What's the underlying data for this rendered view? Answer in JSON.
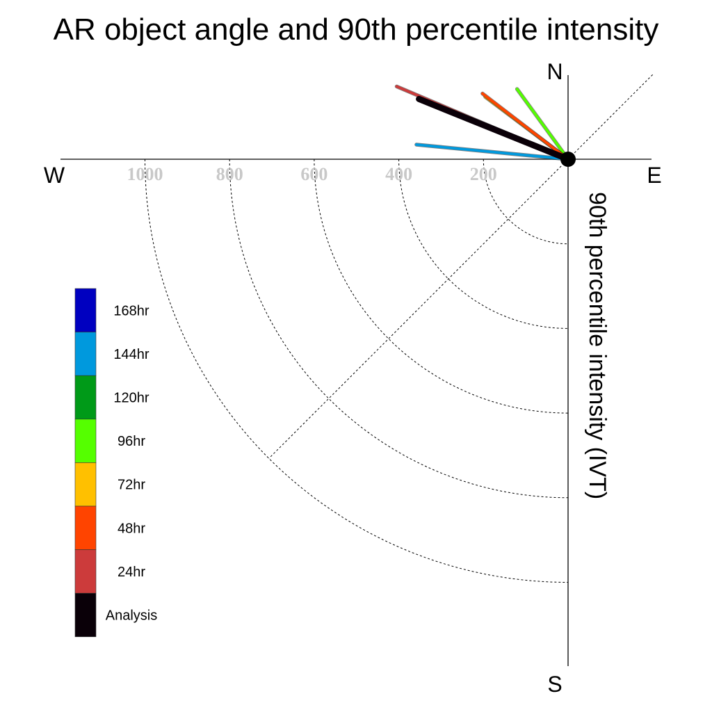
{
  "chart_data": {
    "type": "polar-vector",
    "title": "AR object angle and 90th percentile intensity",
    "radial_label": "90th percentile intensity (IVT)",
    "compass": {
      "north": "N",
      "south": "S",
      "east": "E",
      "west": "W"
    },
    "radial_ticks": [
      200,
      400,
      600,
      800,
      1000
    ],
    "rmax": 1200,
    "series": [
      {
        "name": "144hr",
        "color": "#0099dd",
        "angle_deg": -84.5,
        "intensity": 360
      },
      {
        "name": "24hr",
        "color": "#cc3b3b",
        "angle_deg": -67.0,
        "intensity": 440
      },
      {
        "name": "Analysis",
        "color": "#0a0008",
        "angle_deg": -68.0,
        "intensity": 380
      },
      {
        "name": "48hr",
        "color": "#ff4400",
        "angle_deg": -52.5,
        "intensity": 255
      },
      {
        "name": "72hr",
        "color": "#ffc000",
        "angle_deg": -53.0,
        "intensity": 245
      },
      {
        "name": "96hr",
        "color": "#55ff00",
        "angle_deg": -36.0,
        "intensity": 205
      }
    ],
    "legend": [
      {
        "label": "168hr",
        "color": "#0000c0"
      },
      {
        "label": "144hr",
        "color": "#0099dd"
      },
      {
        "label": "120hr",
        "color": "#009a18"
      },
      {
        "label": "96hr",
        "color": "#55ff00"
      },
      {
        "label": "72hr",
        "color": "#ffc000"
      },
      {
        "label": "48hr",
        "color": "#ff4400"
      },
      {
        "label": "24hr",
        "color": "#cc3b3b"
      },
      {
        "label": "Analysis",
        "color": "#0a0008"
      }
    ]
  }
}
